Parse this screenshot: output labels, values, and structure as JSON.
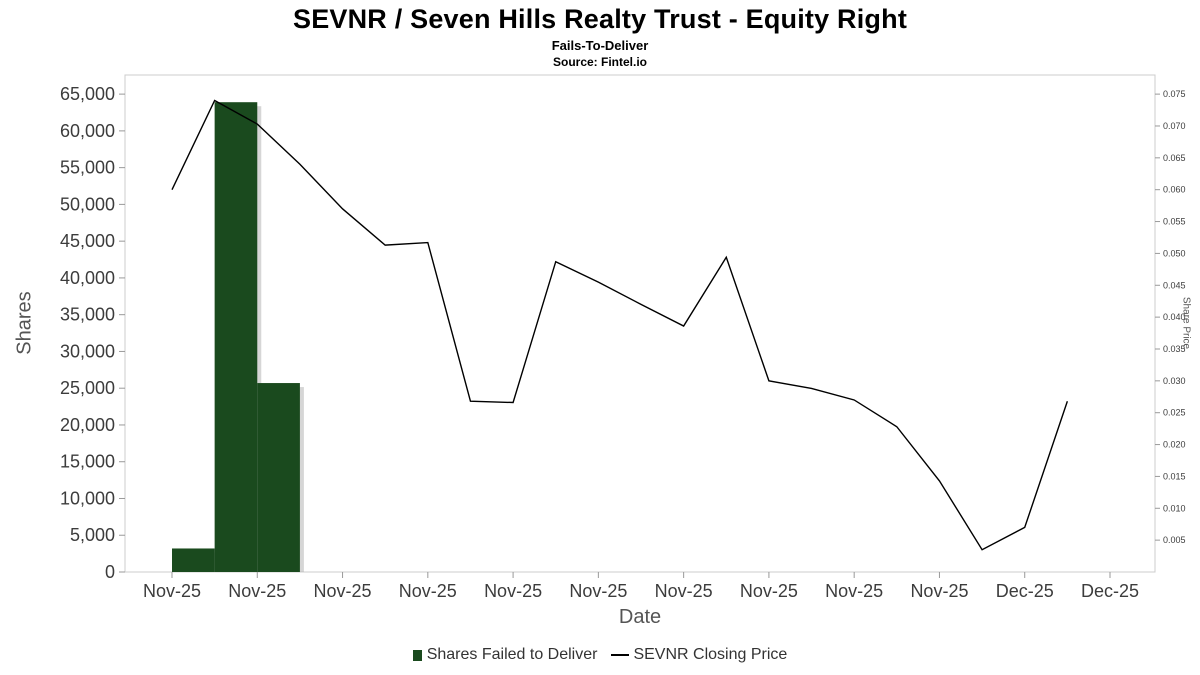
{
  "chart_data": {
    "type": "combo_bar_line",
    "title": "SEVNR / Seven Hills Realty Trust - Equity Right",
    "subtitle": "Fails-To-Deliver",
    "source": "Source: Fintel.io",
    "xlabel": "Date",
    "ylabel_left": "Shares",
    "ylabel_right": "Share Price",
    "grid": false,
    "legend_position": "bottom",
    "n_points": 23,
    "left_axis": {
      "min": 0,
      "max": 67600,
      "ticks": [
        0,
        5000,
        10000,
        15000,
        20000,
        25000,
        30000,
        35000,
        40000,
        45000,
        50000,
        55000,
        60000,
        65000
      ]
    },
    "right_axis": {
      "min": 0,
      "max": 0.078,
      "ticks": [
        0.005,
        0.01,
        0.015,
        0.02,
        0.025,
        0.03,
        0.035,
        0.04,
        0.045,
        0.05,
        0.055,
        0.06,
        0.065,
        0.07,
        0.075
      ]
    },
    "x_ticks": [
      {
        "index": 0,
        "label": "Nov-25"
      },
      {
        "index": 2,
        "label": "Nov-25"
      },
      {
        "index": 4,
        "label": "Nov-25"
      },
      {
        "index": 6,
        "label": "Nov-25"
      },
      {
        "index": 8,
        "label": "Nov-25"
      },
      {
        "index": 10,
        "label": "Nov-25"
      },
      {
        "index": 12,
        "label": "Nov-25"
      },
      {
        "index": 14,
        "label": "Nov-25"
      },
      {
        "index": 16,
        "label": "Nov-25"
      },
      {
        "index": 18,
        "label": "Nov-25"
      },
      {
        "index": 20,
        "label": "Dec-25"
      },
      {
        "index": 22,
        "label": "Dec-25"
      }
    ],
    "bars": {
      "name": "Shares Failed to Deliver",
      "color": "#1a4a1e",
      "shadow_color": "#b5b5b5",
      "items": [
        {
          "index": 0,
          "value": 3200
        },
        {
          "index": 1,
          "value": 63900
        },
        {
          "index": 2,
          "value": 25700
        }
      ]
    },
    "line": {
      "name": "SEVNR Closing Price",
      "color": "#000000",
      "start_index": 0,
      "values": [
        0.06,
        0.074,
        0.0703,
        0.064,
        0.057,
        0.0513,
        0.0517,
        0.0268,
        0.0266,
        0.0487,
        0.0455,
        0.042,
        0.0386,
        0.0494,
        0.03,
        0.0288,
        0.027,
        0.0228,
        0.0143,
        0.0035,
        0.007,
        0.0268
      ]
    }
  }
}
